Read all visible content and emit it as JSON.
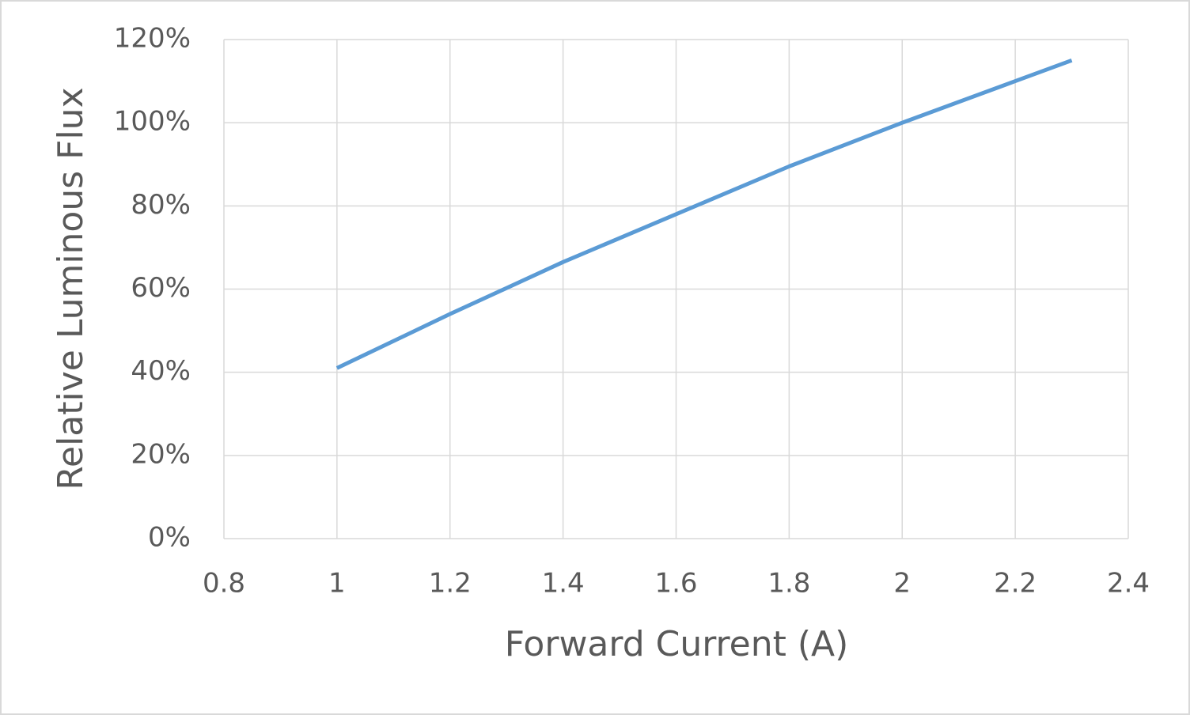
{
  "chart_data": {
    "type": "line",
    "x_label": "Forward Current (A)",
    "y_label": "Relative Luminous Flux",
    "x": [
      1,
      1.2,
      1.4,
      1.6,
      1.8,
      2.0,
      2.2,
      2.3
    ],
    "series": [
      {
        "color": "#5b9bd5",
        "values": [
          41,
          54,
          66.5,
          78,
          89.5,
          100,
          110,
          115
        ]
      }
    ],
    "xlim": [
      0.8,
      2.4
    ],
    "xticks": [
      0.8,
      1,
      1.2,
      1.4,
      1.6,
      1.8,
      2,
      2.2,
      2.4
    ],
    "ylim": [
      0,
      120
    ],
    "yticks": [
      {
        "value": 0,
        "label": "0%"
      },
      {
        "value": 20,
        "label": "20%"
      },
      {
        "value": 40,
        "label": "40%"
      },
      {
        "value": 60,
        "label": "60%"
      },
      {
        "value": 80,
        "label": "80%"
      },
      {
        "value": 100,
        "label": "100%"
      },
      {
        "value": 120,
        "label": "120%"
      }
    ],
    "grid": true
  }
}
